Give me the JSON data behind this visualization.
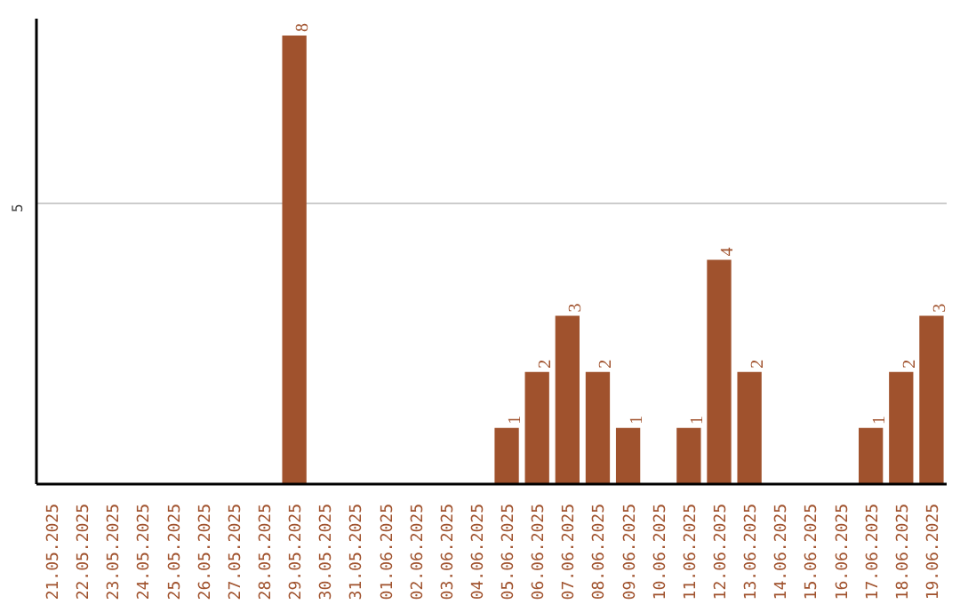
{
  "chart_data": {
    "type": "bar",
    "categories": [
      "21.05.2025",
      "22.05.2025",
      "23.05.2025",
      "24.05.2025",
      "25.05.2025",
      "26.05.2025",
      "27.05.2025",
      "28.05.2025",
      "29.05.2025",
      "30.05.2025",
      "31.05.2025",
      "01.06.2025",
      "02.06.2025",
      "03.06.2025",
      "04.06.2025",
      "05.06.2025",
      "06.06.2025",
      "07.06.2025",
      "08.06.2025",
      "09.06.2025",
      "10.06.2025",
      "11.06.2025",
      "12.06.2025",
      "13.06.2025",
      "14.06.2025",
      "15.06.2025",
      "16.06.2025",
      "17.06.2025",
      "18.06.2025",
      "19.06.2025"
    ],
    "values": [
      0,
      0,
      0,
      0,
      0,
      0,
      0,
      0,
      8,
      0,
      0,
      0,
      0,
      0,
      0,
      1,
      2,
      3,
      2,
      1,
      0,
      1,
      4,
      2,
      0,
      0,
      0,
      1,
      2,
      3
    ],
    "value_labels": [
      null,
      null,
      null,
      null,
      null,
      null,
      null,
      null,
      "8",
      null,
      null,
      null,
      null,
      null,
      null,
      "1",
      "2",
      "3",
      "2",
      "1",
      null,
      "1",
      "4",
      "2",
      null,
      null,
      null,
      "1",
      "2",
      "3"
    ],
    "color": "#a0522d",
    "ylim": [
      0,
      8.3
    ],
    "yticks": [
      5
    ],
    "grid": "y"
  }
}
